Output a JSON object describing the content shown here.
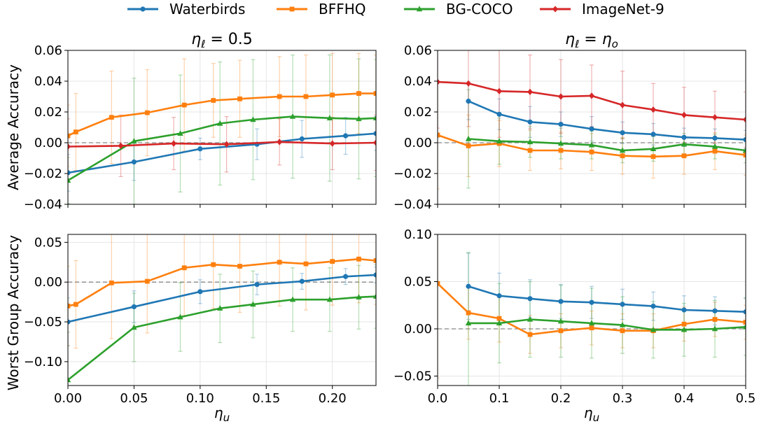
{
  "legend": [
    {
      "name": "Waterbirds",
      "color": "#1f77b4",
      "marker": "circle"
    },
    {
      "name": "BFFHQ",
      "color": "#ff7f0e",
      "marker": "square"
    },
    {
      "name": "BG-COCO",
      "color": "#2ca02c",
      "marker": "triangle"
    },
    {
      "name": "ImageNet-9",
      "color": "#d62728",
      "marker": "diamond"
    }
  ],
  "titles": {
    "left": "η_ℓ = 0.5",
    "right": "η_ℓ = η_o"
  },
  "ylabels": {
    "top": "Average Accuracy",
    "bottom": "Worst Group Accuracy"
  },
  "xlabel": "η_u",
  "chart_data": [
    {
      "id": "tl",
      "type": "line",
      "title": "η_ℓ = 0.5",
      "ylabel": "Average Accuracy",
      "xlabel": "",
      "xlim": [
        0.0,
        0.233
      ],
      "ylim": [
        -0.04,
        0.06
      ],
      "xticks": [
        0.0,
        0.05,
        0.1,
        0.15,
        0.2
      ],
      "xticklabels": [],
      "yticks": [
        -0.04,
        -0.02,
        0.0,
        0.02,
        0.04,
        0.06
      ],
      "yticklabels": [
        "−0.04",
        "−0.02",
        "0.00",
        "0.02",
        "0.04",
        "0.06"
      ],
      "grid": true,
      "zero_line": true,
      "series": [
        {
          "name": "Waterbirds",
          "x": [
            0.0,
            0.05,
            0.1,
            0.143,
            0.177,
            0.21,
            0.233
          ],
          "y": [
            -0.0195,
            -0.0125,
            -0.004,
            -0.001,
            0.0025,
            0.0045,
            0.006
          ],
          "err": [
            0.012,
            0.012,
            0.007,
            0.01,
            0.012,
            0.012,
            0.011
          ]
        },
        {
          "name": "BFFHQ",
          "x": [
            0.0,
            0.006,
            0.033,
            0.06,
            0.088,
            0.11,
            0.13,
            0.16,
            0.18,
            0.2,
            0.22,
            0.233
          ],
          "y": [
            0.0045,
            0.007,
            0.0165,
            0.0195,
            0.0245,
            0.0275,
            0.0285,
            0.03,
            0.03,
            0.031,
            0.032,
            0.032
          ],
          "err": [
            0.02,
            0.025,
            0.03,
            0.028,
            0.03,
            0.024,
            0.025,
            0.026,
            0.027,
            0.027,
            0.026,
            0.025
          ]
        },
        {
          "name": "BG-COCO",
          "x": [
            0.0,
            0.05,
            0.085,
            0.115,
            0.14,
            0.17,
            0.198,
            0.22,
            0.233
          ],
          "y": [
            -0.0245,
            0.001,
            0.006,
            0.0125,
            0.015,
            0.017,
            0.016,
            0.0155,
            0.016
          ],
          "err": [
            0.015,
            0.041,
            0.038,
            0.04,
            0.039,
            0.04,
            0.041,
            0.039,
            0.038
          ]
        },
        {
          "name": "ImageNet-9",
          "x": [
            0.0,
            0.04,
            0.08,
            0.12,
            0.16,
            0.2,
            0.233
          ],
          "y": [
            -0.0025,
            -0.002,
            -0.0005,
            -0.001,
            0.0005,
            -0.0005,
            0.0
          ],
          "err": [
            0.018,
            0.02,
            0.017,
            0.018,
            0.015,
            0.017,
            0.018
          ]
        }
      ]
    },
    {
      "id": "tr",
      "type": "line",
      "title": "η_ℓ = η_o",
      "ylabel": "",
      "xlabel": "",
      "xlim": [
        0.0,
        0.5
      ],
      "ylim": [
        -0.04,
        0.06
      ],
      "xticks": [
        0.0,
        0.1,
        0.2,
        0.3,
        0.4,
        0.5
      ],
      "xticklabels": [],
      "yticks": [
        -0.04,
        -0.02,
        0.0,
        0.02,
        0.04,
        0.06
      ],
      "yticklabels": [
        "−0.04",
        "−0.02",
        "0.00",
        "0.02",
        "0.04",
        "0.06"
      ],
      "grid": true,
      "zero_line": true,
      "series": [
        {
          "name": "Waterbirds",
          "x": [
            0.05,
            0.1,
            0.15,
            0.2,
            0.25,
            0.3,
            0.35,
            0.4,
            0.45,
            0.5
          ],
          "y": [
            0.027,
            0.0185,
            0.0135,
            0.012,
            0.009,
            0.0065,
            0.0055,
            0.0035,
            0.003,
            0.002
          ],
          "err": [
            0.012,
            0.01,
            0.01,
            0.008,
            0.008,
            0.007,
            0.007,
            0.006,
            0.006,
            0.006
          ]
        },
        {
          "name": "BFFHQ",
          "x": [
            0.0,
            0.05,
            0.1,
            0.15,
            0.2,
            0.25,
            0.3,
            0.35,
            0.4,
            0.45,
            0.5
          ],
          "y": [
            0.005,
            -0.002,
            -0.0005,
            -0.005,
            -0.005,
            -0.006,
            -0.0085,
            -0.009,
            -0.0085,
            -0.0055,
            -0.008
          ],
          "err": [
            0.035,
            0.02,
            0.015,
            0.013,
            0.012,
            0.012,
            0.012,
            0.014,
            0.012,
            0.012,
            0.013
          ]
        },
        {
          "name": "BG-COCO",
          "x": [
            0.05,
            0.1,
            0.15,
            0.2,
            0.25,
            0.3,
            0.35,
            0.4,
            0.45,
            0.5
          ],
          "y": [
            0.0025,
            0.001,
            0.0005,
            -0.0005,
            -0.0015,
            -0.005,
            -0.004,
            -0.001,
            -0.0025,
            -0.005
          ],
          "err": [
            0.032,
            0.015,
            0.01,
            0.01,
            0.009,
            0.008,
            0.008,
            0.007,
            0.008,
            0.008
          ]
        },
        {
          "name": "ImageNet-9",
          "x": [
            0.0,
            0.05,
            0.1,
            0.15,
            0.2,
            0.25,
            0.3,
            0.35,
            0.4,
            0.45,
            0.5
          ],
          "y": [
            0.0395,
            0.0385,
            0.0335,
            0.033,
            0.03,
            0.0305,
            0.0245,
            0.0215,
            0.018,
            0.0165,
            0.015
          ],
          "err": [
            0.03,
            0.028,
            0.03,
            0.024,
            0.024,
            0.02,
            0.022,
            0.017,
            0.018,
            0.017,
            0.018
          ]
        }
      ]
    },
    {
      "id": "bl",
      "type": "line",
      "title": "",
      "ylabel": "Worst Group Accuracy",
      "xlabel": "η_u",
      "xlim": [
        0.0,
        0.233
      ],
      "ylim": [
        -0.13,
        0.06
      ],
      "xticks": [
        0.0,
        0.05,
        0.1,
        0.15,
        0.2
      ],
      "xticklabels": [
        "0.00",
        "0.05",
        "0.10",
        "0.15",
        "0.20"
      ],
      "yticks": [
        -0.1,
        -0.05,
        0.0,
        0.05
      ],
      "yticklabels": [
        "−0.10",
        "−0.05",
        "0.00",
        "0.05"
      ],
      "grid": true,
      "zero_line": true,
      "series": [
        {
          "name": "Waterbirds",
          "x": [
            0.0,
            0.05,
            0.1,
            0.143,
            0.177,
            0.21,
            0.233
          ],
          "y": [
            -0.05,
            -0.031,
            -0.012,
            -0.003,
            0.001,
            0.007,
            0.009
          ],
          "err": [
            0.03,
            0.02,
            0.015,
            0.013,
            0.01,
            0.01,
            0.01
          ]
        },
        {
          "name": "BFFHQ",
          "x": [
            0.0,
            0.006,
            0.033,
            0.06,
            0.088,
            0.11,
            0.13,
            0.16,
            0.18,
            0.2,
            0.22,
            0.233
          ],
          "y": [
            -0.03,
            -0.028,
            -0.001,
            0.001,
            0.018,
            0.022,
            0.02,
            0.025,
            0.023,
            0.026,
            0.029,
            0.027
          ],
          "err": [
            0.05,
            0.055,
            0.07,
            0.065,
            0.06,
            0.055,
            0.058,
            0.055,
            0.058,
            0.055,
            0.055,
            0.055
          ]
        },
        {
          "name": "BG-COCO",
          "x": [
            0.0,
            0.05,
            0.085,
            0.115,
            0.14,
            0.17,
            0.198,
            0.22,
            0.233
          ],
          "y": [
            -0.123,
            -0.057,
            -0.044,
            -0.033,
            -0.028,
            -0.022,
            -0.022,
            -0.019,
            -0.018
          ],
          "err": [
            0.06,
            0.043,
            0.043,
            0.043,
            0.042,
            0.04,
            0.04,
            0.04,
            0.04
          ]
        }
      ]
    },
    {
      "id": "br",
      "type": "line",
      "title": "",
      "ylabel": "",
      "xlabel": "η_u",
      "xlim": [
        0.0,
        0.5
      ],
      "ylim": [
        -0.06,
        0.1
      ],
      "xticks": [
        0.0,
        0.1,
        0.2,
        0.3,
        0.4,
        0.5
      ],
      "xticklabels": [
        "0.0",
        "0.1",
        "0.2",
        "0.3",
        "0.4",
        "0.5"
      ],
      "yticks": [
        -0.05,
        0.0,
        0.05,
        0.1
      ],
      "yticklabels": [
        "−0.05",
        "0.00",
        "0.05",
        "0.10"
      ],
      "grid": true,
      "zero_line": true,
      "series": [
        {
          "name": "Waterbirds",
          "x": [
            0.05,
            0.1,
            0.15,
            0.2,
            0.25,
            0.3,
            0.35,
            0.4,
            0.45,
            0.5
          ],
          "y": [
            0.045,
            0.035,
            0.032,
            0.029,
            0.028,
            0.026,
            0.024,
            0.02,
            0.019,
            0.018
          ],
          "err": [
            0.035,
            0.024,
            0.02,
            0.018,
            0.017,
            0.016,
            0.015,
            0.015,
            0.015,
            0.015
          ]
        },
        {
          "name": "BFFHQ",
          "x": [
            0.0,
            0.05,
            0.1,
            0.15,
            0.2,
            0.25,
            0.3,
            0.35,
            0.4,
            0.45,
            0.5
          ],
          "y": [
            0.048,
            0.017,
            0.011,
            -0.006,
            -0.002,
            0.001,
            -0.002,
            -0.002,
            0.005,
            0.01,
            0.007
          ],
          "err": [
            0.1,
            0.028,
            0.025,
            0.02,
            0.018,
            0.018,
            0.018,
            0.018,
            0.018,
            0.018,
            0.018
          ]
        },
        {
          "name": "BG-COCO",
          "x": [
            0.05,
            0.1,
            0.15,
            0.2,
            0.25,
            0.3,
            0.35,
            0.4,
            0.45,
            0.5
          ],
          "y": [
            0.006,
            0.006,
            0.01,
            0.008,
            0.006,
            0.004,
            -0.001,
            -0.001,
            0.0,
            0.002
          ],
          "err": [
            0.075,
            0.042,
            0.04,
            0.038,
            0.037,
            0.03,
            0.03,
            0.028,
            0.03,
            0.03
          ]
        }
      ]
    }
  ]
}
